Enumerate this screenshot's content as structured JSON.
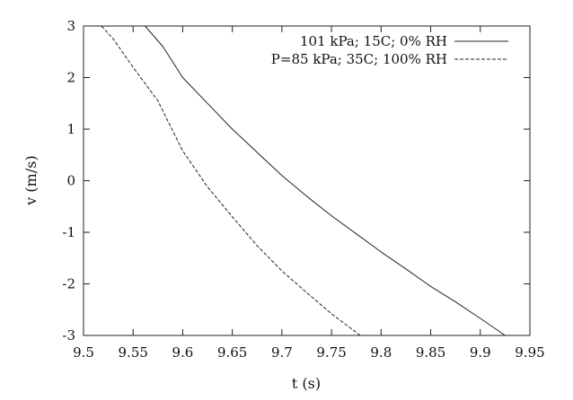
{
  "chart_data": {
    "type": "line",
    "xlabel": "t (s)",
    "ylabel": "v (m/s)",
    "xlim": [
      9.5,
      9.95
    ],
    "ylim": [
      -3,
      3
    ],
    "xticks": [
      9.5,
      9.55,
      9.6,
      9.65,
      9.7,
      9.75,
      9.8,
      9.85,
      9.9,
      9.95
    ],
    "xtick_labels": [
      "9.5",
      "9.55",
      "9.6",
      "9.65",
      "9.7",
      "9.75",
      "9.8",
      "9.85",
      "9.9",
      "9.95"
    ],
    "yticks": [
      -3,
      -2,
      -1,
      0,
      1,
      2,
      3
    ],
    "ytick_labels": [
      "-3",
      "-2",
      "-1",
      "0",
      "1",
      "2",
      "3"
    ],
    "grid": false,
    "legend_position": "top-right",
    "series": [
      {
        "name": "101 kPa; 15C; 0% RH",
        "style": "solid",
        "color": "#222222",
        "points": [
          [
            9.562,
            3.0
          ],
          [
            9.58,
            2.6
          ],
          [
            9.6,
            2.0
          ],
          [
            9.625,
            1.5
          ],
          [
            9.65,
            1.0
          ],
          [
            9.675,
            0.55
          ],
          [
            9.7,
            0.1
          ],
          [
            9.725,
            -0.3
          ],
          [
            9.75,
            -0.68
          ],
          [
            9.775,
            -1.03
          ],
          [
            9.8,
            -1.38
          ],
          [
            9.825,
            -1.71
          ],
          [
            9.85,
            -2.05
          ],
          [
            9.875,
            -2.35
          ],
          [
            9.9,
            -2.67
          ],
          [
            9.925,
            -3.0
          ]
        ]
      },
      {
        "name": "P=85 kPa; 35C; 100% RH",
        "style": "dashed",
        "color": "#222222",
        "points": [
          [
            9.518,
            3.0
          ],
          [
            9.53,
            2.75
          ],
          [
            9.55,
            2.2
          ],
          [
            9.575,
            1.55
          ],
          [
            9.6,
            0.58
          ],
          [
            9.625,
            -0.12
          ],
          [
            9.65,
            -0.7
          ],
          [
            9.675,
            -1.26
          ],
          [
            9.7,
            -1.75
          ],
          [
            9.725,
            -2.17
          ],
          [
            9.75,
            -2.58
          ],
          [
            9.779,
            -3.0
          ]
        ]
      }
    ]
  }
}
